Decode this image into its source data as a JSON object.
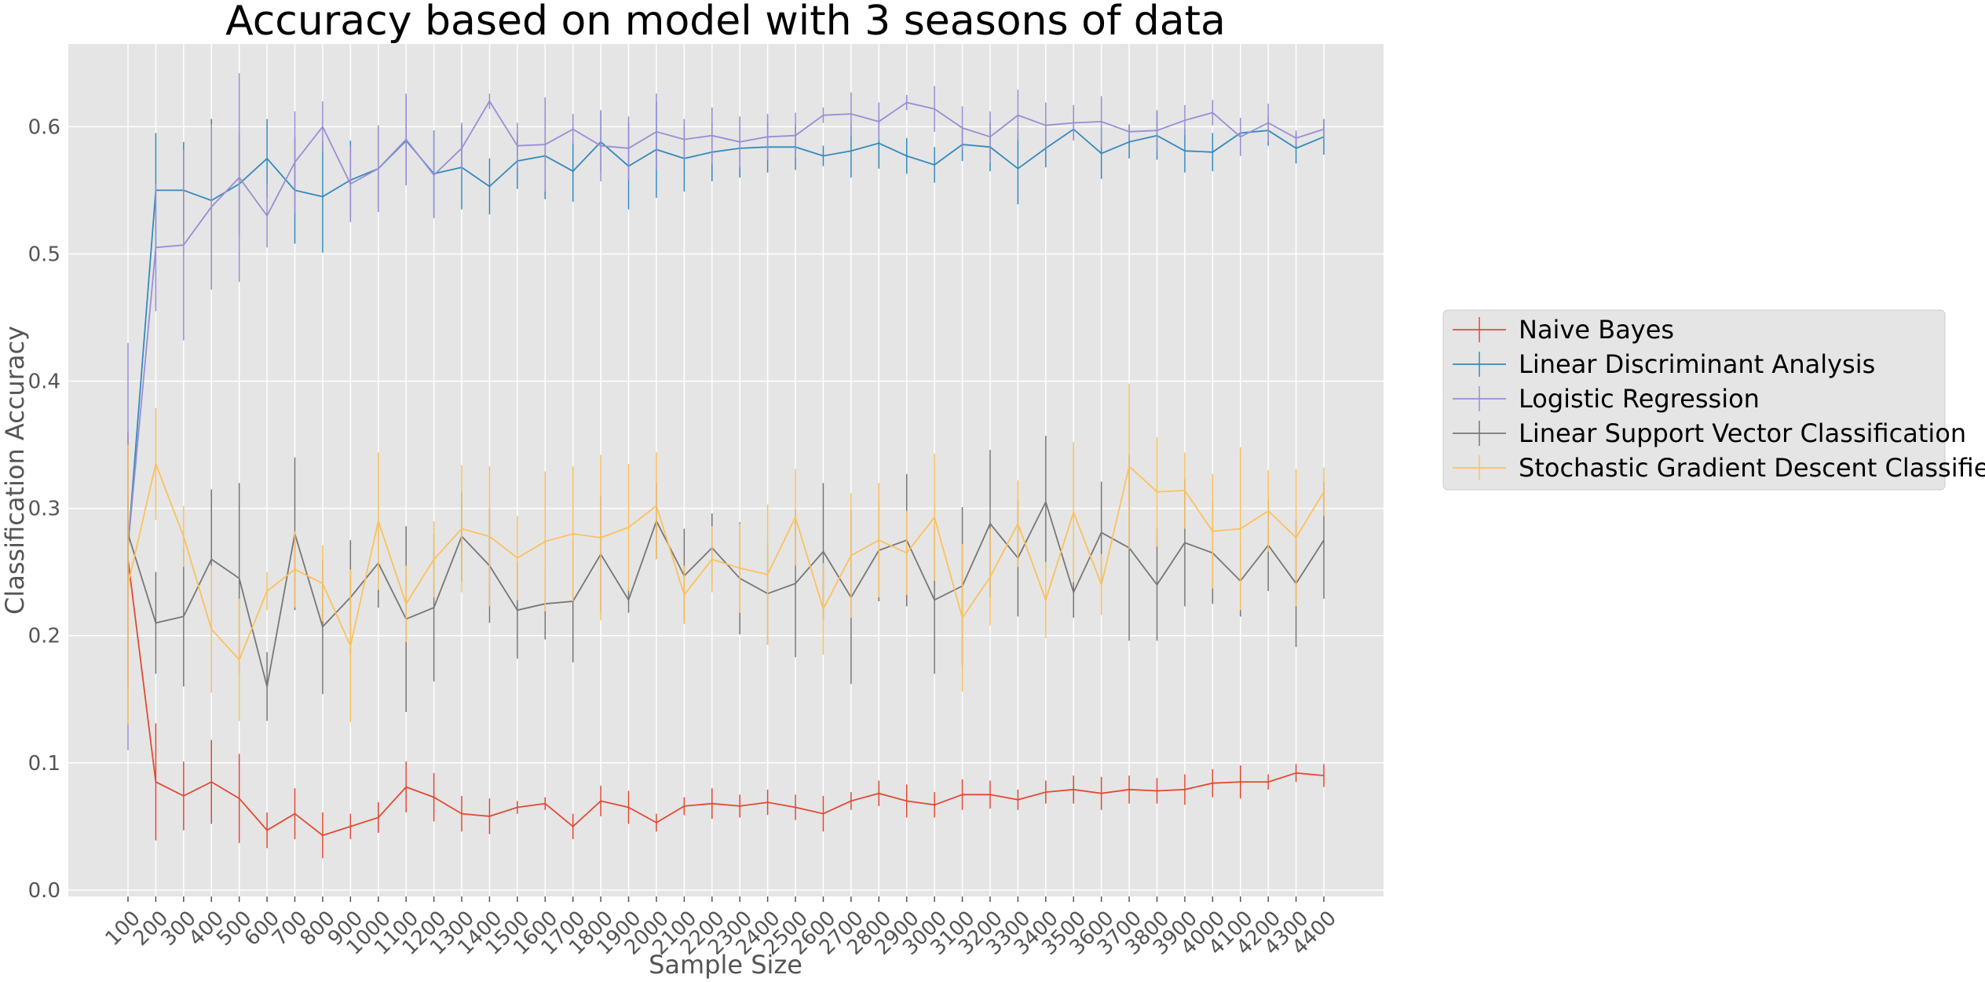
{
  "chart_data": {
    "type": "line",
    "title": "Accuracy based on model with 3 seasons of data",
    "xlabel": "Sample Size",
    "ylabel": "Classification Accuracy",
    "ylim": [
      -0.005,
      0.665
    ],
    "yticks": [
      "0.0",
      "0.1",
      "0.2",
      "0.3",
      "0.4",
      "0.5",
      "0.6"
    ],
    "grid": true,
    "legend_position": "right",
    "categories": [
      "100",
      "200",
      "300",
      "400",
      "500",
      "600",
      "700",
      "800",
      "900",
      "1000",
      "1100",
      "1200",
      "1300",
      "1400",
      "1500",
      "1600",
      "1700",
      "1800",
      "1900",
      "2000",
      "2100",
      "2200",
      "2300",
      "2400",
      "2500",
      "2600",
      "2700",
      "2800",
      "2900",
      "3000",
      "3100",
      "3200",
      "3300",
      "3400",
      "3500",
      "3600",
      "3700",
      "3800",
      "3900",
      "4000",
      "4100",
      "4200",
      "4300",
      "4400"
    ],
    "series": [
      {
        "name": "Naive Bayes",
        "color": "#E24A33",
        "values": [
          0.26,
          0.085,
          0.074,
          0.085,
          0.072,
          0.047,
          0.06,
          0.043,
          0.05,
          0.057,
          0.081,
          0.073,
          0.06,
          0.058,
          0.065,
          0.068,
          0.05,
          0.07,
          0.065,
          0.053,
          0.066,
          0.068,
          0.066,
          0.069,
          0.065,
          0.06,
          0.07,
          0.076,
          0.07,
          0.067,
          0.075,
          0.075,
          0.071,
          0.077,
          0.079,
          0.076,
          0.079,
          0.078,
          0.079,
          0.084,
          0.085,
          0.085,
          0.092,
          0.09
        ],
        "errors": [
          0.1,
          0.046,
          0.027,
          0.033,
          0.035,
          0.014,
          0.02,
          0.018,
          0.01,
          0.012,
          0.02,
          0.019,
          0.014,
          0.014,
          0.005,
          0.005,
          0.01,
          0.012,
          0.013,
          0.007,
          0.007,
          0.012,
          0.009,
          0.01,
          0.01,
          0.014,
          0.007,
          0.01,
          0.013,
          0.01,
          0.012,
          0.011,
          0.008,
          0.009,
          0.011,
          0.013,
          0.011,
          0.01,
          0.012,
          0.011,
          0.013,
          0.006,
          0.007,
          0.009
        ]
      },
      {
        "name": "Linear Discriminant Analysis",
        "color": "#348ABD",
        "values": [
          0.27,
          0.55,
          0.55,
          0.542,
          0.555,
          0.575,
          0.55,
          0.545,
          0.558,
          0.567,
          0.589,
          0.563,
          0.568,
          0.553,
          0.573,
          0.577,
          0.565,
          0.588,
          0.569,
          0.582,
          0.575,
          0.58,
          0.583,
          0.584,
          0.584,
          0.577,
          0.581,
          0.587,
          0.577,
          0.57,
          0.586,
          0.584,
          0.567,
          0.583,
          0.598,
          0.579,
          0.588,
          0.593,
          0.581,
          0.58,
          0.595,
          0.597,
          0.583,
          0.592
        ],
        "errors": [
          0.03,
          0.045,
          0.038,
          0.064,
          0.041,
          0.031,
          0.042,
          0.044,
          0.031,
          0.034,
          0.035,
          0.034,
          0.033,
          0.022,
          0.022,
          0.034,
          0.024,
          0.024,
          0.034,
          0.038,
          0.026,
          0.023,
          0.023,
          0.02,
          0.018,
          0.008,
          0.021,
          0.02,
          0.014,
          0.014,
          0.013,
          0.019,
          0.028,
          0.015,
          0.008,
          0.02,
          0.013,
          0.019,
          0.017,
          0.015,
          0.012,
          0.012,
          0.012,
          0.014
        ]
      },
      {
        "name": "Logistic Regression",
        "color": "#988ED5",
        "values": [
          0.27,
          0.505,
          0.507,
          0.537,
          0.56,
          0.53,
          0.572,
          0.6,
          0.555,
          0.567,
          0.59,
          0.562,
          0.583,
          0.62,
          0.585,
          0.586,
          0.598,
          0.585,
          0.583,
          0.596,
          0.59,
          0.593,
          0.588,
          0.592,
          0.593,
          0.609,
          0.61,
          0.604,
          0.619,
          0.614,
          0.599,
          0.592,
          0.609,
          0.601,
          0.603,
          0.604,
          0.596,
          0.597,
          0.605,
          0.611,
          0.592,
          0.603,
          0.591,
          0.598
        ],
        "errors": [
          0.16,
          0.05,
          0.075,
          0.065,
          0.082,
          0.025,
          0.04,
          0.02,
          0.03,
          0.034,
          0.036,
          0.034,
          0.02,
          0.006,
          0.018,
          0.037,
          0.012,
          0.028,
          0.025,
          0.03,
          0.016,
          0.022,
          0.02,
          0.018,
          0.018,
          0.006,
          0.017,
          0.015,
          0.006,
          0.018,
          0.017,
          0.02,
          0.02,
          0.018,
          0.014,
          0.02,
          0.006,
          0.016,
          0.012,
          0.01,
          0.015,
          0.015,
          0.006,
          0.008
        ]
      },
      {
        "name": "Linear Support Vector Classification",
        "color": "#777777",
        "values": [
          0.28,
          0.21,
          0.215,
          0.26,
          0.245,
          0.16,
          0.28,
          0.207,
          0.23,
          0.257,
          0.213,
          0.222,
          0.278,
          0.255,
          0.22,
          0.225,
          0.227,
          0.264,
          0.228,
          0.29,
          0.247,
          0.269,
          0.245,
          0.233,
          0.241,
          0.266,
          0.23,
          0.267,
          0.275,
          0.228,
          0.239,
          0.288,
          0.261,
          0.305,
          0.234,
          0.281,
          0.269,
          0.24,
          0.273,
          0.265,
          0.243,
          0.271,
          0.241,
          0.275
        ],
        "errors": [
          0.03,
          0.04,
          0.055,
          0.055,
          0.075,
          0.027,
          0.06,
          0.053,
          0.045,
          0.035,
          0.073,
          0.058,
          0.035,
          0.045,
          0.038,
          0.028,
          0.048,
          0.046,
          0.01,
          0.03,
          0.037,
          0.027,
          0.044,
          0.04,
          0.058,
          0.054,
          0.068,
          0.04,
          0.052,
          0.058,
          0.062,
          0.058,
          0.046,
          0.052,
          0.02,
          0.04,
          0.073,
          0.044,
          0.05,
          0.04,
          0.028,
          0.036,
          0.05,
          0.046
        ]
      },
      {
        "name": "Stochastic Gradient Descent Classifier",
        "color": "#FBC15E",
        "values": [
          0.24,
          0.335,
          0.278,
          0.205,
          0.181,
          0.235,
          0.252,
          0.241,
          0.192,
          0.29,
          0.225,
          0.26,
          0.284,
          0.278,
          0.261,
          0.274,
          0.28,
          0.277,
          0.285,
          0.302,
          0.232,
          0.26,
          0.253,
          0.248,
          0.293,
          0.221,
          0.263,
          0.275,
          0.265,
          0.293,
          0.214,
          0.246,
          0.288,
          0.228,
          0.297,
          0.24,
          0.333,
          0.313,
          0.314,
          0.282,
          0.284,
          0.298,
          0.277,
          0.313
        ],
        "errors": [
          0.11,
          0.044,
          0.024,
          0.05,
          0.048,
          0.015,
          0.03,
          0.03,
          0.06,
          0.054,
          0.03,
          0.03,
          0.05,
          0.055,
          0.033,
          0.055,
          0.053,
          0.065,
          0.05,
          0.042,
          0.023,
          0.026,
          0.035,
          0.055,
          0.038,
          0.036,
          0.049,
          0.045,
          0.033,
          0.05,
          0.058,
          0.038,
          0.034,
          0.03,
          0.055,
          0.024,
          0.065,
          0.043,
          0.03,
          0.045,
          0.064,
          0.032,
          0.054,
          0.019
        ]
      }
    ]
  }
}
